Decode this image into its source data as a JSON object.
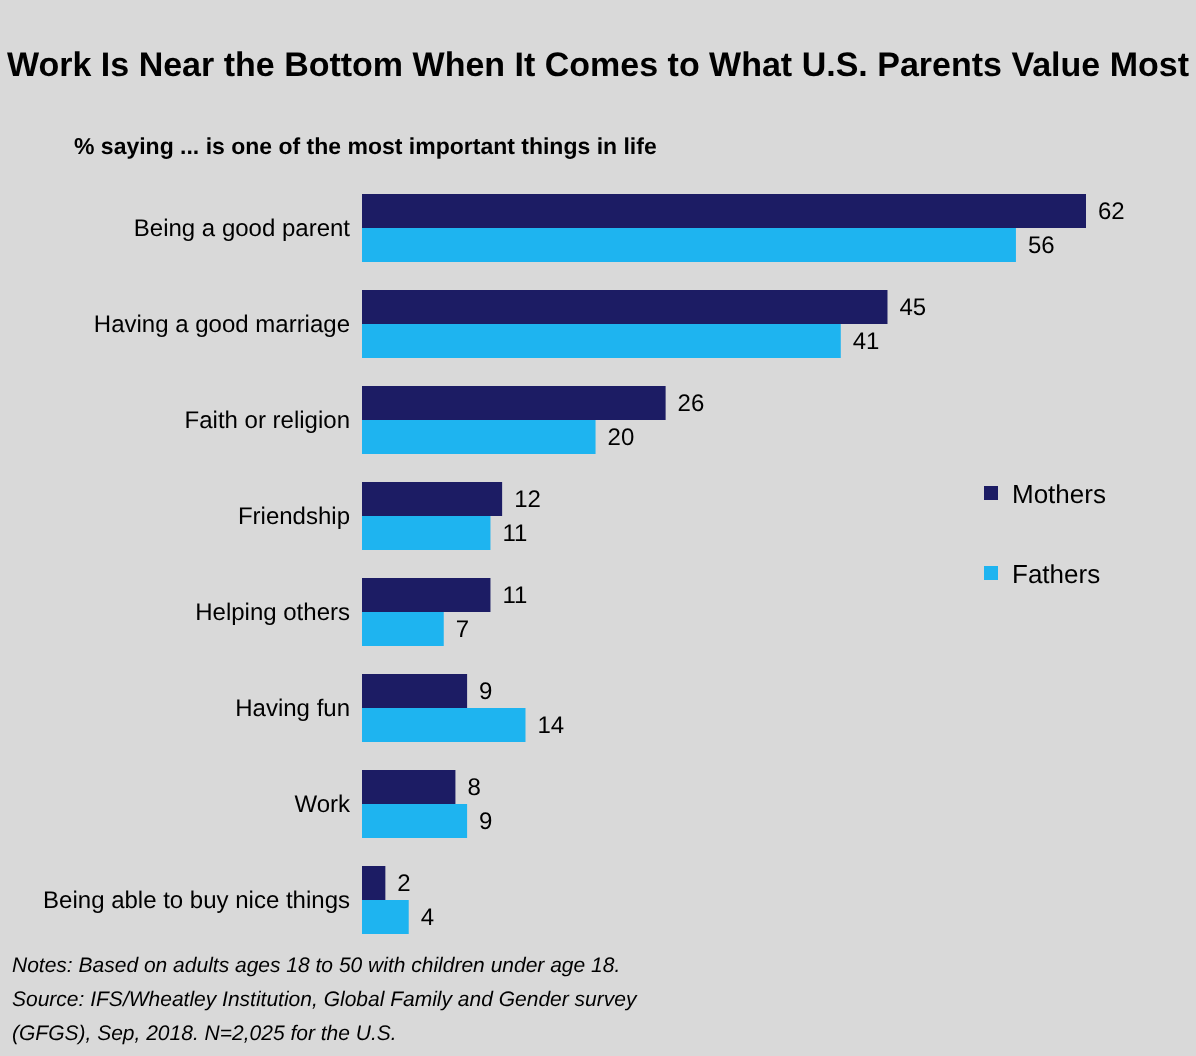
{
  "chart_data": {
    "type": "bar",
    "orientation": "horizontal",
    "title": "Work Is Near the Bottom When It Comes to What U.S. Parents Value Most",
    "subtitle": "% saying ... is one of the most important things in life",
    "categories": [
      "Being a good parent",
      "Having a good marriage",
      "Faith or religion",
      "Friendship",
      "Helping others",
      "Having fun",
      "Work",
      "Being able to buy nice things"
    ],
    "series": [
      {
        "name": "Mothers",
        "color": "#1c1c64",
        "values": [
          62,
          45,
          26,
          12,
          11,
          9,
          8,
          2
        ]
      },
      {
        "name": "Fathers",
        "color": "#1eb4f0",
        "values": [
          56,
          41,
          20,
          11,
          7,
          14,
          9,
          4
        ]
      }
    ],
    "data_labels": true,
    "legend": "right",
    "annotations": [
      "Notes: Based on adults ages 18 to 50 with children under age 18.",
      "Source: IFS/Wheatley Institution, Global Family and Gender survey",
      "(GFGS), Sep, 2018. N=2,025 for the U.S."
    ]
  }
}
